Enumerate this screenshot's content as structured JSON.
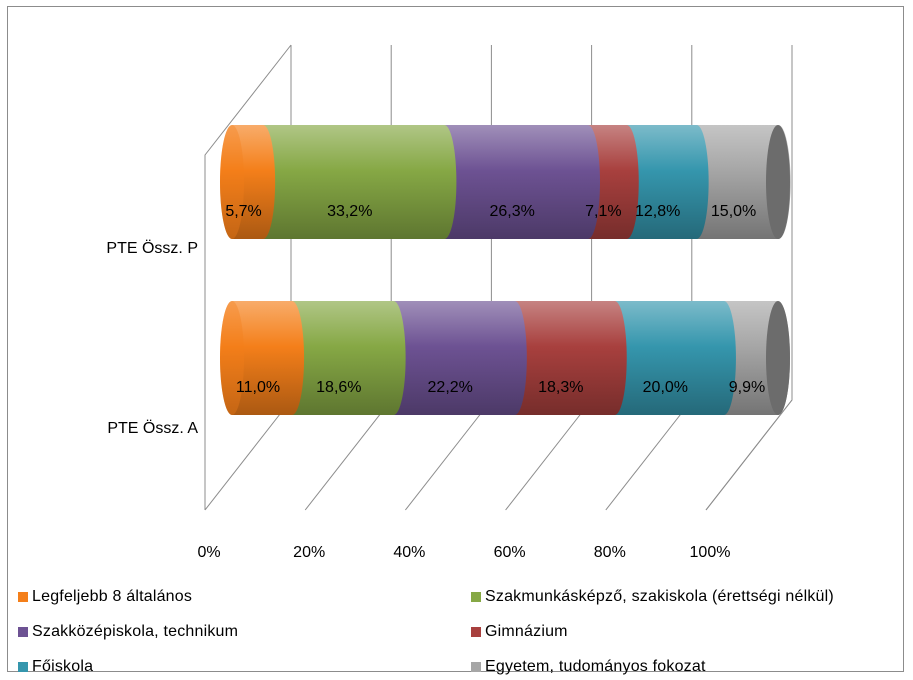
{
  "chart_data": {
    "type": "bar",
    "orientation": "horizontal",
    "stacked": "100%",
    "style": "3d-cylinder",
    "title": "",
    "xlabel": "",
    "ylabel": "",
    "categories": [
      "PTE Össz. P",
      "PTE Össz. A"
    ],
    "x_ticks": [
      "0%",
      "20%",
      "40%",
      "60%",
      "80%",
      "100%"
    ],
    "xlim": [
      0,
      100
    ],
    "grid": true,
    "legend_position": "bottom",
    "series": [
      {
        "name": "Legfeljebb 8 általános",
        "color": "#f47f1a",
        "values": [
          5.7,
          11.0
        ],
        "labels": [
          "5,7%",
          "11,0%"
        ]
      },
      {
        "name": "Szakmunkásképző, szakiskola (érettségi nélkül)",
        "color": "#86a845",
        "values": [
          33.2,
          18.6
        ],
        "labels": [
          "33,2%",
          "18,6%"
        ]
      },
      {
        "name": "Szakközépiskola, technikum",
        "color": "#6d5293",
        "values": [
          26.3,
          22.2
        ],
        "labels": [
          "26,3%",
          "22,2%"
        ]
      },
      {
        "name": "Gimnázium",
        "color": "#a8403e",
        "values": [
          7.1,
          18.3
        ],
        "labels": [
          "7,1%",
          "18,3%"
        ]
      },
      {
        "name": "Főiskola",
        "color": "#3596ad",
        "values": [
          12.8,
          20.0
        ],
        "labels": [
          "12,8%",
          "20,0%"
        ]
      },
      {
        "name": "Egyetem, tudományos fokozat",
        "color": "#a6a6a6",
        "values": [
          15.0,
          9.9
        ],
        "labels": [
          "15,0%",
          "9,9%"
        ]
      }
    ]
  }
}
